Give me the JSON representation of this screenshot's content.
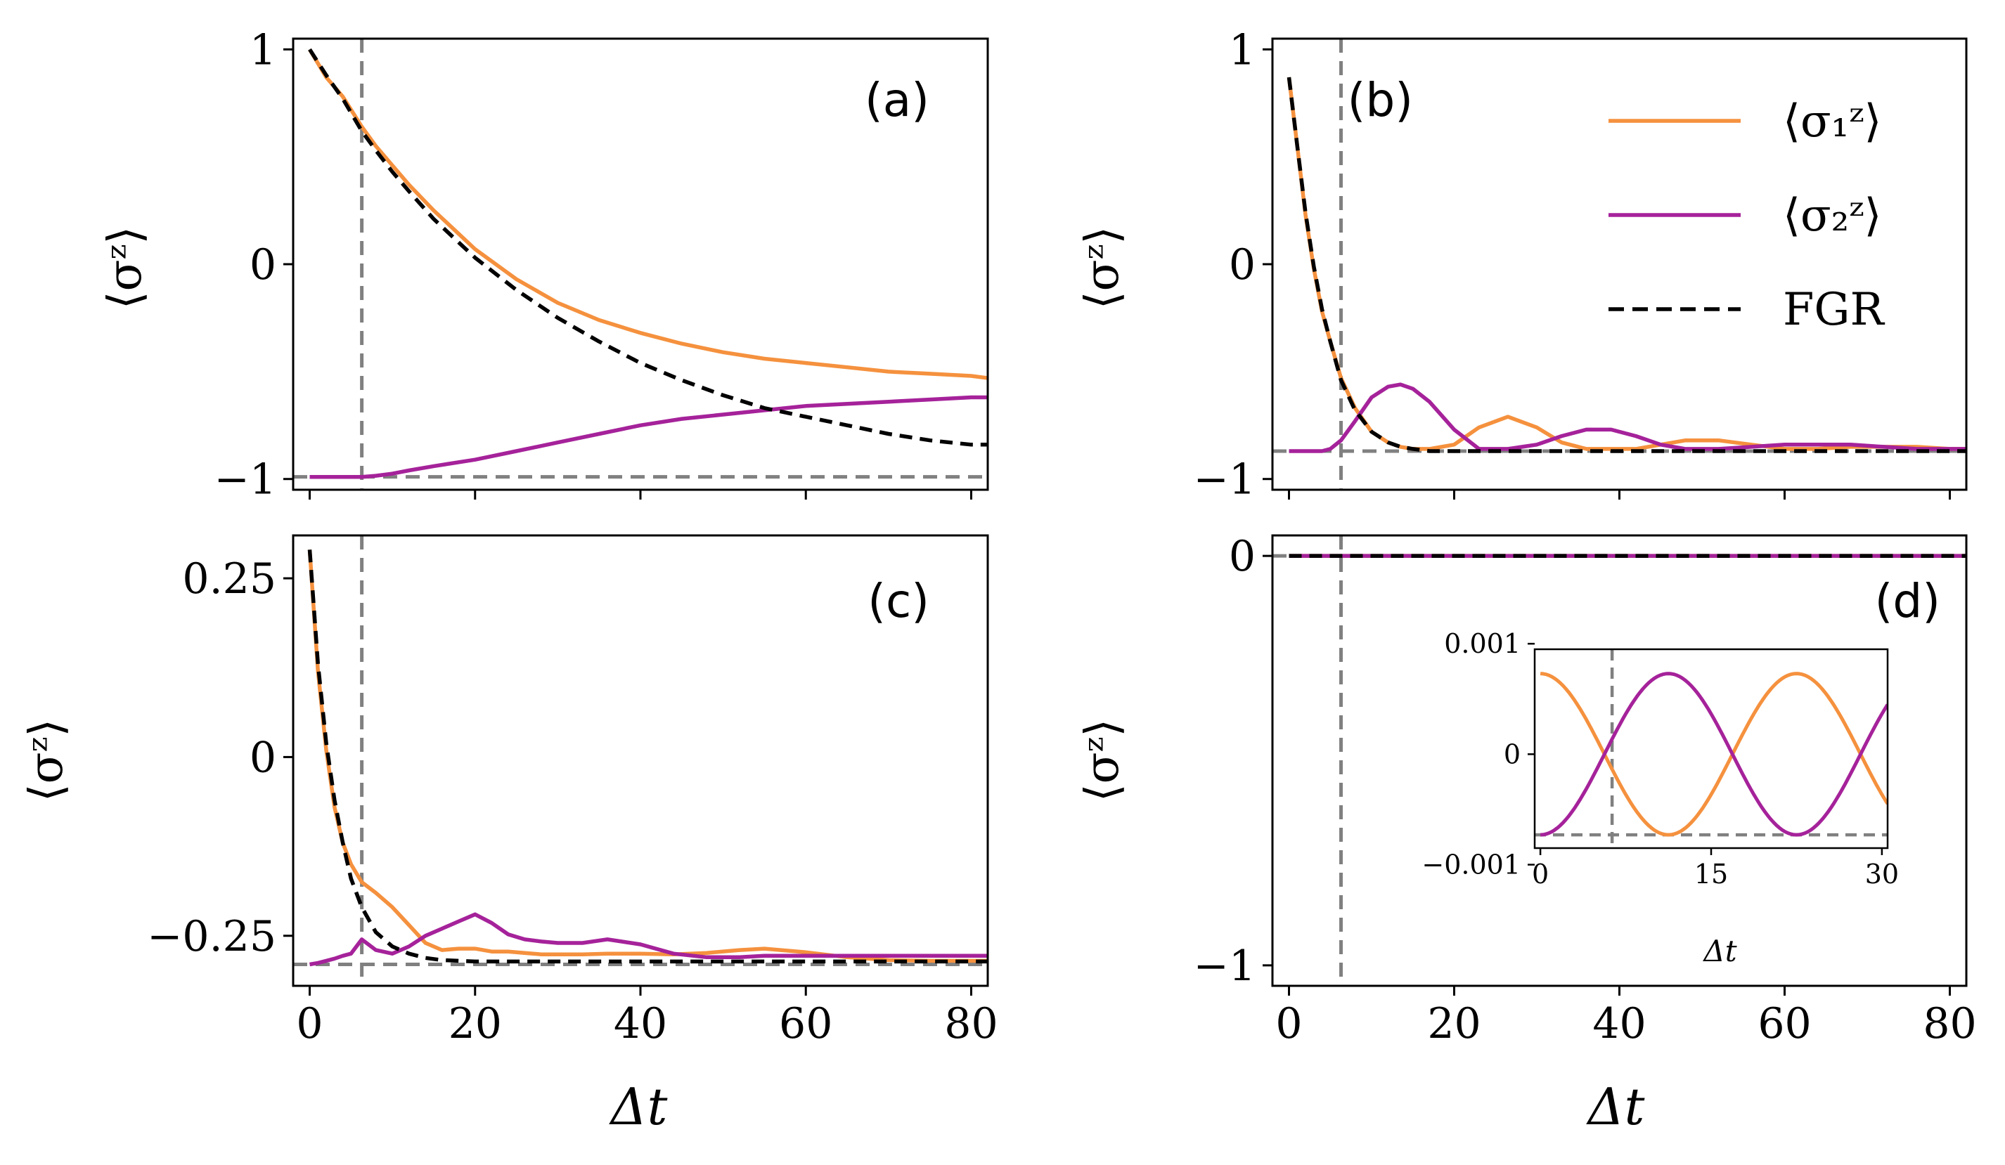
{
  "figure": {
    "legend": {
      "entries": [
        {
          "label": "⟨σ₁ᶻ⟩",
          "color": "#f5913e",
          "style": "solid"
        },
        {
          "label": "⟨σ₂ᶻ⟩",
          "color": "#a5229a",
          "style": "solid"
        },
        {
          "label": "FGR",
          "color": "#000000",
          "style": "dashed"
        }
      ]
    },
    "colors": {
      "sigma1": "#f5913e",
      "sigma2": "#a5229a",
      "fgr": "#000000",
      "reference": "#808080"
    }
  },
  "chart_data": [
    {
      "panel": "(a)",
      "type": "line",
      "ylabel": "⟨σᶻ⟩",
      "xlabel": "",
      "xlim": [
        -2,
        82
      ],
      "ylim": [
        -1.05,
        1.05
      ],
      "xticks": [
        0,
        20,
        40,
        60,
        80
      ],
      "xtick_labels": [],
      "yticks": [
        1,
        0,
        -1
      ],
      "ytick_labels": [
        "1",
        "0",
        "−1"
      ],
      "vline": 6.3,
      "hline": -0.99,
      "x": [
        0,
        2,
        4,
        6.3,
        8,
        10,
        12,
        15,
        20,
        25,
        30,
        35,
        40,
        45,
        50,
        55,
        60,
        65,
        70,
        75,
        80,
        82
      ],
      "series": [
        {
          "name": "⟨σ₁ᶻ⟩",
          "color": "#f5913e",
          "values": [
            1.0,
            0.87,
            0.78,
            0.64,
            0.55,
            0.46,
            0.37,
            0.25,
            0.07,
            -0.07,
            -0.18,
            -0.26,
            -0.32,
            -0.37,
            -0.41,
            -0.44,
            -0.46,
            -0.48,
            -0.5,
            -0.51,
            -0.52,
            -0.53
          ]
        },
        {
          "name": "⟨σ₂ᶻ⟩",
          "color": "#a5229a",
          "values": [
            -0.99,
            -0.99,
            -0.99,
            -0.99,
            -0.985,
            -0.975,
            -0.96,
            -0.94,
            -0.91,
            -0.87,
            -0.83,
            -0.79,
            -0.75,
            -0.72,
            -0.7,
            -0.68,
            -0.66,
            -0.65,
            -0.64,
            -0.63,
            -0.62,
            -0.62
          ]
        },
        {
          "name": "FGR",
          "color": "#000000",
          "dashed": true,
          "values": [
            1.0,
            0.88,
            0.77,
            0.62,
            0.53,
            0.43,
            0.34,
            0.21,
            0.03,
            -0.12,
            -0.25,
            -0.36,
            -0.46,
            -0.54,
            -0.61,
            -0.67,
            -0.71,
            -0.75,
            -0.79,
            -0.82,
            -0.84,
            -0.84
          ]
        }
      ]
    },
    {
      "panel": "(b)",
      "type": "line",
      "ylabel": "⟨σᶻ⟩",
      "xlabel": "",
      "xlim": [
        -2,
        82
      ],
      "ylim": [
        -1.05,
        1.05
      ],
      "xticks": [
        0,
        20,
        40,
        60,
        80
      ],
      "xtick_labels": [],
      "yticks": [
        1,
        0,
        -1
      ],
      "ytick_labels": [
        "1",
        "0",
        "−1"
      ],
      "vline": 6.3,
      "hline": -0.87,
      "x": [
        0,
        1,
        2,
        3,
        4,
        5,
        6.3,
        8,
        10,
        12,
        13.5,
        15,
        17,
        20,
        23,
        26.5,
        30,
        33,
        36,
        39,
        42,
        45,
        48,
        52,
        56,
        60,
        64,
        68,
        72,
        76,
        80,
        82
      ],
      "series": [
        {
          "name": "⟨σ₁ᶻ⟩",
          "color": "#f5913e",
          "values": [
            0.87,
            0.55,
            0.23,
            -0.02,
            -0.22,
            -0.36,
            -0.53,
            -0.67,
            -0.78,
            -0.83,
            -0.85,
            -0.86,
            -0.86,
            -0.84,
            -0.76,
            -0.71,
            -0.76,
            -0.83,
            -0.86,
            -0.86,
            -0.86,
            -0.84,
            -0.82,
            -0.82,
            -0.84,
            -0.86,
            -0.86,
            -0.85,
            -0.85,
            -0.85,
            -0.86,
            -0.86
          ]
        },
        {
          "name": "⟨σ₂ᶻ⟩",
          "color": "#a5229a",
          "values": [
            -0.87,
            -0.87,
            -0.87,
            -0.87,
            -0.87,
            -0.86,
            -0.82,
            -0.73,
            -0.62,
            -0.57,
            -0.56,
            -0.58,
            -0.64,
            -0.77,
            -0.86,
            -0.86,
            -0.84,
            -0.8,
            -0.77,
            -0.77,
            -0.8,
            -0.84,
            -0.86,
            -0.86,
            -0.85,
            -0.84,
            -0.84,
            -0.84,
            -0.85,
            -0.86,
            -0.86,
            -0.86
          ]
        },
        {
          "name": "FGR",
          "color": "#000000",
          "dashed": true,
          "values": [
            0.87,
            0.55,
            0.24,
            -0.01,
            -0.21,
            -0.36,
            -0.54,
            -0.68,
            -0.78,
            -0.83,
            -0.85,
            -0.86,
            -0.87,
            -0.87,
            -0.87,
            -0.87,
            -0.87,
            -0.87,
            -0.87,
            -0.87,
            -0.87,
            -0.87,
            -0.87,
            -0.87,
            -0.87,
            -0.87,
            -0.87,
            -0.87,
            -0.87,
            -0.87,
            -0.87,
            -0.87
          ]
        }
      ]
    },
    {
      "panel": "(c)",
      "type": "line",
      "ylabel": "⟨σᶻ⟩",
      "xlabel": "Δt",
      "xlim": [
        -2,
        82
      ],
      "ylim": [
        -0.32,
        0.31
      ],
      "xticks": [
        0,
        20,
        40,
        60,
        80
      ],
      "xtick_labels": [
        "0",
        "20",
        "40",
        "60",
        "80"
      ],
      "yticks": [
        0.25,
        0,
        -0.25
      ],
      "ytick_labels": [
        "0.25",
        "0",
        "−0.25"
      ],
      "vline": 6.3,
      "hline": -0.29,
      "x": [
        0,
        1,
        2,
        3,
        4,
        5,
        6.3,
        8,
        10,
        12,
        14,
        16,
        18,
        20,
        22,
        24,
        26,
        28,
        30,
        33,
        36,
        40,
        44,
        48,
        52,
        55,
        60,
        65,
        70,
        75,
        80,
        82
      ],
      "series": [
        {
          "name": "⟨σ₁ᶻ⟩",
          "color": "#f5913e",
          "values": [
            0.29,
            0.12,
            0.01,
            -0.07,
            -0.12,
            -0.15,
            -0.175,
            -0.19,
            -0.21,
            -0.235,
            -0.26,
            -0.27,
            -0.268,
            -0.268,
            -0.272,
            -0.272,
            -0.274,
            -0.276,
            -0.276,
            -0.276,
            -0.275,
            -0.275,
            -0.276,
            -0.274,
            -0.27,
            -0.268,
            -0.273,
            -0.28,
            -0.284,
            -0.285,
            -0.285,
            -0.285
          ]
        },
        {
          "name": "⟨σ₂ᶻ⟩",
          "color": "#a5229a",
          "values": [
            -0.29,
            -0.288,
            -0.285,
            -0.282,
            -0.278,
            -0.275,
            -0.255,
            -0.27,
            -0.275,
            -0.265,
            -0.25,
            -0.24,
            -0.23,
            -0.22,
            -0.232,
            -0.248,
            -0.255,
            -0.258,
            -0.26,
            -0.26,
            -0.255,
            -0.262,
            -0.275,
            -0.28,
            -0.28,
            -0.278,
            -0.278,
            -0.278,
            -0.278,
            -0.278,
            -0.278,
            -0.278
          ]
        },
        {
          "name": "FGR",
          "color": "#000000",
          "dashed": true,
          "values": [
            0.29,
            0.13,
            0.02,
            -0.06,
            -0.12,
            -0.17,
            -0.21,
            -0.245,
            -0.265,
            -0.275,
            -0.281,
            -0.284,
            -0.285,
            -0.286,
            -0.286,
            -0.286,
            -0.286,
            -0.286,
            -0.286,
            -0.286,
            -0.286,
            -0.286,
            -0.286,
            -0.286,
            -0.286,
            -0.286,
            -0.286,
            -0.286,
            -0.286,
            -0.286,
            -0.286,
            -0.286
          ]
        }
      ]
    },
    {
      "panel": "(d)",
      "type": "line",
      "ylabel": "⟨σᶻ⟩",
      "xlabel": "Δt",
      "xlim": [
        -2,
        82
      ],
      "ylim": [
        -1.05,
        0.05
      ],
      "xticks": [
        0,
        20,
        40,
        60,
        80
      ],
      "xtick_labels": [
        "0",
        "20",
        "40",
        "60",
        "80"
      ],
      "yticks": [
        0,
        -1
      ],
      "ytick_labels": [
        "0",
        "−1"
      ],
      "vline": 6.3,
      "hline": 0,
      "x": [
        0,
        82
      ],
      "series": [
        {
          "name": "⟨σ₁ᶻ⟩",
          "color": "#f5913e",
          "values": [
            0,
            0
          ]
        },
        {
          "name": "⟨σ₂ᶻ⟩",
          "color": "#a5229a",
          "values": [
            0,
            0
          ]
        },
        {
          "name": "FGR",
          "color": "#000000",
          "dashed": true,
          "values": [
            0,
            0
          ]
        }
      ],
      "inset": {
        "type": "line",
        "xlabel": "Δt",
        "xlim": [
          -0.5,
          30.5
        ],
        "ylim": [
          -0.00085,
          0.00095
        ],
        "xticks": [
          0,
          15,
          30
        ],
        "xtick_labels": [
          "0",
          "15",
          "30"
        ],
        "yticks": [
          0.001,
          0,
          -0.001
        ],
        "ytick_labels": [
          "0.001",
          "0",
          "−0.001"
        ],
        "vline": 6.3,
        "hline": -0.00073,
        "series": [
          {
            "name": "⟨σ₁ᶻ⟩",
            "color": "#f5913e",
            "amplitude": 0.00073,
            "period": 22.5,
            "phase": "cos",
            "x_end": 30.5
          },
          {
            "name": "⟨σ₂ᶻ⟩",
            "color": "#a5229a",
            "amplitude": -0.00073,
            "period": 22.5,
            "phase": "cos",
            "x_end": 30.5
          }
        ]
      }
    }
  ]
}
